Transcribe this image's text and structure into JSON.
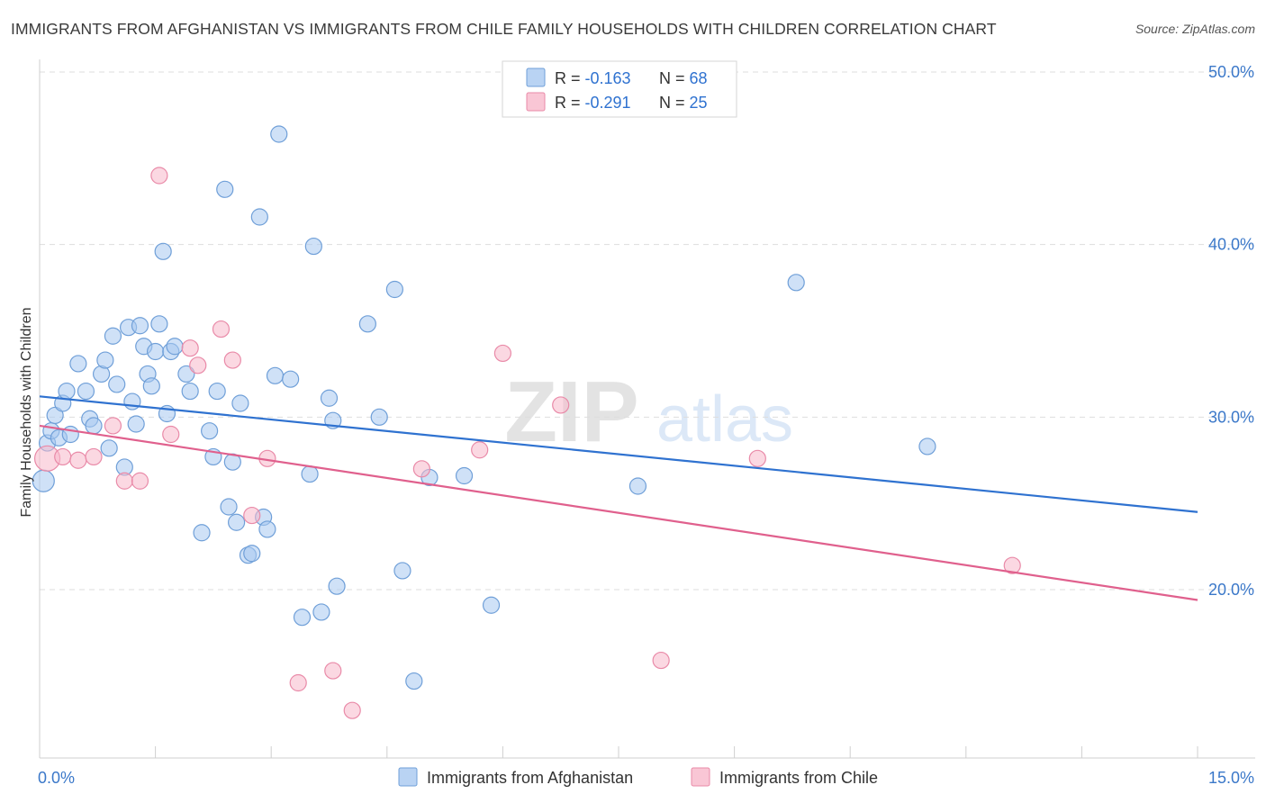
{
  "header": {
    "title": "IMMIGRANTS FROM AFGHANISTAN VS IMMIGRANTS FROM CHILE FAMILY HOUSEHOLDS WITH CHILDREN CORRELATION CHART",
    "source": "Source: ZipAtlas.com"
  },
  "watermark": {
    "zip": "ZIP",
    "atlas": "atlas"
  },
  "legend_top": [
    {
      "r_label": "R = ",
      "r_value": "-0.163",
      "n_label": "N = ",
      "n_value": "68"
    },
    {
      "r_label": "R = ",
      "r_value": "-0.291",
      "n_label": "N = ",
      "n_value": "25"
    }
  ],
  "legend_bottom": [
    "Immigrants from Afghanistan",
    "Immigrants from Chile"
  ],
  "colors": {
    "afghanistan_fill": "#a8c8f0",
    "afghanistan_stroke": "#6f9fd8",
    "afghanistan_line": "#2f72d0",
    "chile_fill": "#f7b8cb",
    "chile_stroke": "#e98aa8",
    "chile_line": "#e0608d",
    "axis_label": "#3b78c9",
    "grid": "#dddddd"
  },
  "chart_data": {
    "type": "scatter",
    "ylabel": "Family Households with Children",
    "xlabel": "",
    "xlim": [
      0,
      15
    ],
    "ylim": [
      10,
      51
    ],
    "x_tick_labels": [
      {
        "value": 0,
        "label": "0.0%"
      },
      {
        "value": 15,
        "label": "15.0%"
      }
    ],
    "y_tick_labels": [
      {
        "value": 20,
        "label": "20.0%"
      },
      {
        "value": 30,
        "label": "30.0%"
      },
      {
        "value": 40,
        "label": "40.0%"
      },
      {
        "value": 50,
        "label": "50.0%"
      }
    ],
    "grid": true,
    "legend": "top-center",
    "series": [
      {
        "name": "Immigrants from Afghanistan",
        "trend": {
          "x": [
            0,
            15
          ],
          "y": [
            31.2,
            24.5
          ]
        },
        "points": [
          [
            0.05,
            26.3
          ],
          [
            0.1,
            28.5
          ],
          [
            0.15,
            29.2
          ],
          [
            0.2,
            30.1
          ],
          [
            0.25,
            28.8
          ],
          [
            0.3,
            30.8
          ],
          [
            0.35,
            31.5
          ],
          [
            0.4,
            29.0
          ],
          [
            0.5,
            33.1
          ],
          [
            0.6,
            31.5
          ],
          [
            0.65,
            29.9
          ],
          [
            0.7,
            29.5
          ],
          [
            0.8,
            32.5
          ],
          [
            0.9,
            28.2
          ],
          [
            0.95,
            34.7
          ],
          [
            0.85,
            33.3
          ],
          [
            1.0,
            31.9
          ],
          [
            1.1,
            27.1
          ],
          [
            1.15,
            35.2
          ],
          [
            1.2,
            30.9
          ],
          [
            1.25,
            29.6
          ],
          [
            1.3,
            35.3
          ],
          [
            1.35,
            34.1
          ],
          [
            1.4,
            32.5
          ],
          [
            1.45,
            31.8
          ],
          [
            1.5,
            33.8
          ],
          [
            1.55,
            35.4
          ],
          [
            1.6,
            39.6
          ],
          [
            1.65,
            30.2
          ],
          [
            1.7,
            33.8
          ],
          [
            1.75,
            34.1
          ],
          [
            1.9,
            32.5
          ],
          [
            1.95,
            31.5
          ],
          [
            2.1,
            23.3
          ],
          [
            2.2,
            29.2
          ],
          [
            2.25,
            27.7
          ],
          [
            2.3,
            31.5
          ],
          [
            2.4,
            43.2
          ],
          [
            2.45,
            24.8
          ],
          [
            2.5,
            27.4
          ],
          [
            2.55,
            23.9
          ],
          [
            2.6,
            30.8
          ],
          [
            2.7,
            22.0
          ],
          [
            2.75,
            22.1
          ],
          [
            2.85,
            41.6
          ],
          [
            2.9,
            24.2
          ],
          [
            2.95,
            23.5
          ],
          [
            3.05,
            32.4
          ],
          [
            3.1,
            46.4
          ],
          [
            3.25,
            32.2
          ],
          [
            3.4,
            18.4
          ],
          [
            3.5,
            26.7
          ],
          [
            3.55,
            39.9
          ],
          [
            3.65,
            18.7
          ],
          [
            3.75,
            31.1
          ],
          [
            3.8,
            29.8
          ],
          [
            3.85,
            20.2
          ],
          [
            4.25,
            35.4
          ],
          [
            4.4,
            30.0
          ],
          [
            4.6,
            37.4
          ],
          [
            4.7,
            21.1
          ],
          [
            4.85,
            14.7
          ],
          [
            5.05,
            26.5
          ],
          [
            5.5,
            26.6
          ],
          [
            5.85,
            19.1
          ],
          [
            7.75,
            26.0
          ],
          [
            9.8,
            37.8
          ],
          [
            11.5,
            28.3
          ]
        ]
      },
      {
        "name": "Immigrants from Chile",
        "trend": {
          "x": [
            0,
            15
          ],
          "y": [
            29.5,
            19.4
          ]
        },
        "points": [
          [
            0.1,
            27.6
          ],
          [
            0.3,
            27.7
          ],
          [
            0.5,
            27.5
          ],
          [
            0.7,
            27.7
          ],
          [
            0.95,
            29.5
          ],
          [
            1.1,
            26.3
          ],
          [
            1.3,
            26.3
          ],
          [
            1.55,
            44.0
          ],
          [
            1.7,
            29.0
          ],
          [
            1.95,
            34.0
          ],
          [
            2.05,
            33.0
          ],
          [
            2.35,
            35.1
          ],
          [
            2.5,
            33.3
          ],
          [
            2.75,
            24.3
          ],
          [
            2.95,
            27.6
          ],
          [
            3.35,
            14.6
          ],
          [
            4.05,
            13.0
          ],
          [
            3.8,
            15.3
          ],
          [
            4.95,
            27.0
          ],
          [
            5.7,
            28.1
          ],
          [
            6.0,
            33.7
          ],
          [
            6.75,
            30.7
          ],
          [
            8.05,
            15.9
          ],
          [
            9.3,
            27.6
          ],
          [
            12.6,
            21.4
          ]
        ]
      }
    ]
  }
}
